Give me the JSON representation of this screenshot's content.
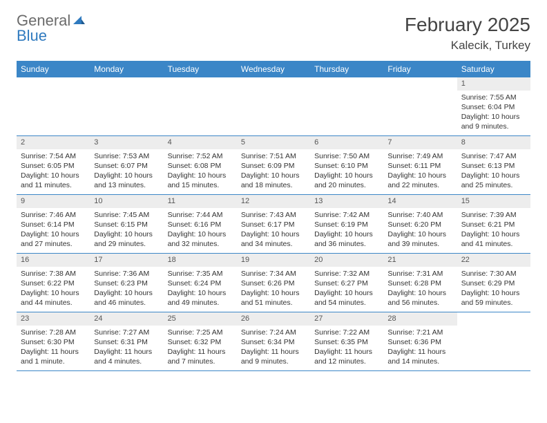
{
  "brand": {
    "word1": "General",
    "word2": "Blue",
    "color1": "#6b6b6b",
    "color2": "#2f7abf"
  },
  "title": "February 2025",
  "location": "Kalecik, Turkey",
  "colors": {
    "header_bg": "#3b86c7",
    "daynum_bg": "#ededed",
    "border": "#3b86c7",
    "text": "#333333"
  },
  "weekdays": [
    "Sunday",
    "Monday",
    "Tuesday",
    "Wednesday",
    "Thursday",
    "Friday",
    "Saturday"
  ],
  "weeks": [
    [
      null,
      null,
      null,
      null,
      null,
      null,
      {
        "n": "1",
        "sr": "Sunrise: 7:55 AM",
        "ss": "Sunset: 6:04 PM",
        "dl": "Daylight: 10 hours and 9 minutes."
      }
    ],
    [
      {
        "n": "2",
        "sr": "Sunrise: 7:54 AM",
        "ss": "Sunset: 6:05 PM",
        "dl": "Daylight: 10 hours and 11 minutes."
      },
      {
        "n": "3",
        "sr": "Sunrise: 7:53 AM",
        "ss": "Sunset: 6:07 PM",
        "dl": "Daylight: 10 hours and 13 minutes."
      },
      {
        "n": "4",
        "sr": "Sunrise: 7:52 AM",
        "ss": "Sunset: 6:08 PM",
        "dl": "Daylight: 10 hours and 15 minutes."
      },
      {
        "n": "5",
        "sr": "Sunrise: 7:51 AM",
        "ss": "Sunset: 6:09 PM",
        "dl": "Daylight: 10 hours and 18 minutes."
      },
      {
        "n": "6",
        "sr": "Sunrise: 7:50 AM",
        "ss": "Sunset: 6:10 PM",
        "dl": "Daylight: 10 hours and 20 minutes."
      },
      {
        "n": "7",
        "sr": "Sunrise: 7:49 AM",
        "ss": "Sunset: 6:11 PM",
        "dl": "Daylight: 10 hours and 22 minutes."
      },
      {
        "n": "8",
        "sr": "Sunrise: 7:47 AM",
        "ss": "Sunset: 6:13 PM",
        "dl": "Daylight: 10 hours and 25 minutes."
      }
    ],
    [
      {
        "n": "9",
        "sr": "Sunrise: 7:46 AM",
        "ss": "Sunset: 6:14 PM",
        "dl": "Daylight: 10 hours and 27 minutes."
      },
      {
        "n": "10",
        "sr": "Sunrise: 7:45 AM",
        "ss": "Sunset: 6:15 PM",
        "dl": "Daylight: 10 hours and 29 minutes."
      },
      {
        "n": "11",
        "sr": "Sunrise: 7:44 AM",
        "ss": "Sunset: 6:16 PM",
        "dl": "Daylight: 10 hours and 32 minutes."
      },
      {
        "n": "12",
        "sr": "Sunrise: 7:43 AM",
        "ss": "Sunset: 6:17 PM",
        "dl": "Daylight: 10 hours and 34 minutes."
      },
      {
        "n": "13",
        "sr": "Sunrise: 7:42 AM",
        "ss": "Sunset: 6:19 PM",
        "dl": "Daylight: 10 hours and 36 minutes."
      },
      {
        "n": "14",
        "sr": "Sunrise: 7:40 AM",
        "ss": "Sunset: 6:20 PM",
        "dl": "Daylight: 10 hours and 39 minutes."
      },
      {
        "n": "15",
        "sr": "Sunrise: 7:39 AM",
        "ss": "Sunset: 6:21 PM",
        "dl": "Daylight: 10 hours and 41 minutes."
      }
    ],
    [
      {
        "n": "16",
        "sr": "Sunrise: 7:38 AM",
        "ss": "Sunset: 6:22 PM",
        "dl": "Daylight: 10 hours and 44 minutes."
      },
      {
        "n": "17",
        "sr": "Sunrise: 7:36 AM",
        "ss": "Sunset: 6:23 PM",
        "dl": "Daylight: 10 hours and 46 minutes."
      },
      {
        "n": "18",
        "sr": "Sunrise: 7:35 AM",
        "ss": "Sunset: 6:24 PM",
        "dl": "Daylight: 10 hours and 49 minutes."
      },
      {
        "n": "19",
        "sr": "Sunrise: 7:34 AM",
        "ss": "Sunset: 6:26 PM",
        "dl": "Daylight: 10 hours and 51 minutes."
      },
      {
        "n": "20",
        "sr": "Sunrise: 7:32 AM",
        "ss": "Sunset: 6:27 PM",
        "dl": "Daylight: 10 hours and 54 minutes."
      },
      {
        "n": "21",
        "sr": "Sunrise: 7:31 AM",
        "ss": "Sunset: 6:28 PM",
        "dl": "Daylight: 10 hours and 56 minutes."
      },
      {
        "n": "22",
        "sr": "Sunrise: 7:30 AM",
        "ss": "Sunset: 6:29 PM",
        "dl": "Daylight: 10 hours and 59 minutes."
      }
    ],
    [
      {
        "n": "23",
        "sr": "Sunrise: 7:28 AM",
        "ss": "Sunset: 6:30 PM",
        "dl": "Daylight: 11 hours and 1 minute."
      },
      {
        "n": "24",
        "sr": "Sunrise: 7:27 AM",
        "ss": "Sunset: 6:31 PM",
        "dl": "Daylight: 11 hours and 4 minutes."
      },
      {
        "n": "25",
        "sr": "Sunrise: 7:25 AM",
        "ss": "Sunset: 6:32 PM",
        "dl": "Daylight: 11 hours and 7 minutes."
      },
      {
        "n": "26",
        "sr": "Sunrise: 7:24 AM",
        "ss": "Sunset: 6:34 PM",
        "dl": "Daylight: 11 hours and 9 minutes."
      },
      {
        "n": "27",
        "sr": "Sunrise: 7:22 AM",
        "ss": "Sunset: 6:35 PM",
        "dl": "Daylight: 11 hours and 12 minutes."
      },
      {
        "n": "28",
        "sr": "Sunrise: 7:21 AM",
        "ss": "Sunset: 6:36 PM",
        "dl": "Daylight: 11 hours and 14 minutes."
      },
      null
    ]
  ]
}
